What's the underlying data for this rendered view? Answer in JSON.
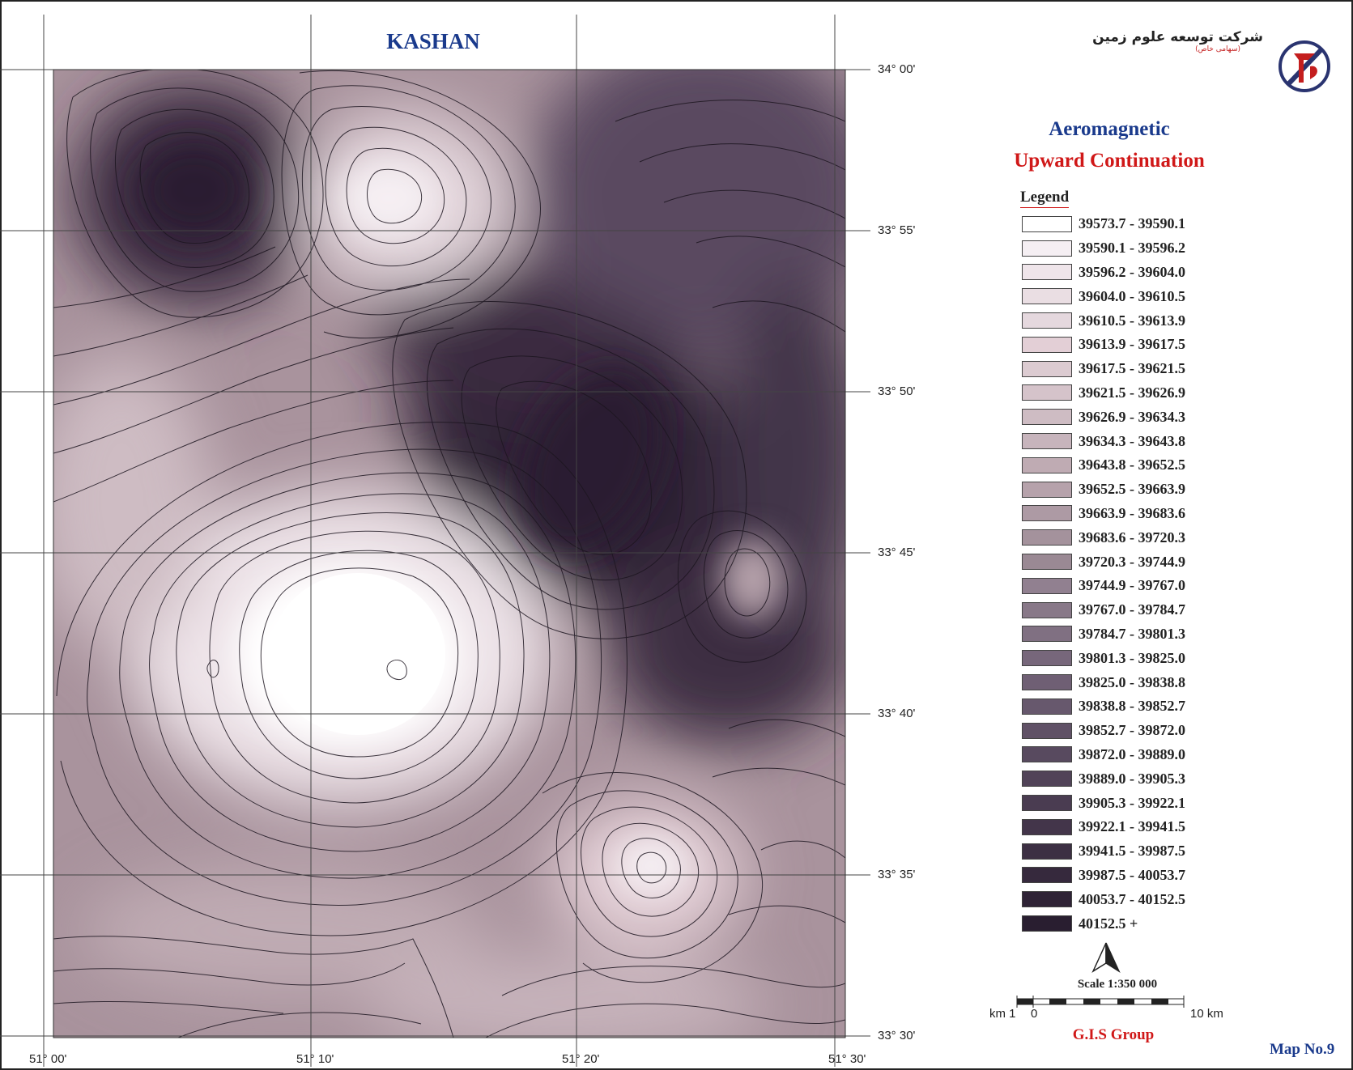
{
  "map": {
    "title": "KASHAN",
    "lat_labels": [
      "34° 00'",
      "33° 55'",
      "33° 50'",
      "33° 45'",
      "33° 40'",
      "33° 35'",
      "33° 30'"
    ],
    "lon_labels": [
      "51° 00'",
      "51° 10'",
      "51° 20'",
      "51° 30'"
    ]
  },
  "header": {
    "company_name": "شرکت توسعه علوم زمین",
    "company_sub": "(سهامی خاص)",
    "heading1": "Aeromagnetic",
    "heading2": "Upward Continuation"
  },
  "legend": {
    "title": "Legend",
    "items": [
      {
        "label": "39573.7 - 39590.1",
        "color": "#ffffff"
      },
      {
        "label": "39590.1 - 39596.2",
        "color": "#f5eff3"
      },
      {
        "label": "39596.2 - 39604.0",
        "color": "#efe5ea"
      },
      {
        "label": "39604.0 - 39610.5",
        "color": "#eadee3"
      },
      {
        "label": "39610.5 - 39613.9",
        "color": "#e5d8de"
      },
      {
        "label": "39613.9 - 39617.5",
        "color": "#e3cfd6"
      },
      {
        "label": "39617.5 - 39621.5",
        "color": "#dccbd1"
      },
      {
        "label": "39621.5 - 39626.9",
        "color": "#d5c3ca"
      },
      {
        "label": "39626.9 - 39634.3",
        "color": "#cebcc3"
      },
      {
        "label": "39634.3 - 39643.8",
        "color": "#c7b4bc"
      },
      {
        "label": "39643.8 - 39652.5",
        "color": "#bfabb3"
      },
      {
        "label": "39652.5 - 39663.9",
        "color": "#b6a2ab"
      },
      {
        "label": "39663.9 - 39683.6",
        "color": "#ad9aa4"
      },
      {
        "label": "39683.6 - 39720.3",
        "color": "#a4929c"
      },
      {
        "label": "39720.3 - 39744.9",
        "color": "#9a8994"
      },
      {
        "label": "39744.9 - 39767.0",
        "color": "#918090"
      },
      {
        "label": "39767.0 - 39784.7",
        "color": "#887888"
      },
      {
        "label": "39784.7 - 39801.3",
        "color": "#807082"
      },
      {
        "label": "39801.3 - 39825.0",
        "color": "#77677b"
      },
      {
        "label": "39825.0 - 39838.8",
        "color": "#6f5f74"
      },
      {
        "label": "39838.8 - 39852.7",
        "color": "#67586d"
      },
      {
        "label": "39852.7 - 39872.0",
        "color": "#605166"
      },
      {
        "label": "39872.0 - 39889.0",
        "color": "#584a5f"
      },
      {
        "label": "39889.0 - 39905.3",
        "color": "#514358"
      },
      {
        "label": "39905.3 - 39922.1",
        "color": "#4a3c51"
      },
      {
        "label": "39922.1 - 39941.5",
        "color": "#43354a"
      },
      {
        "label": "39941.5 - 39987.5",
        "color": "#3c2f43"
      },
      {
        "label": "39987.5 - 40053.7",
        "color": "#36293d"
      },
      {
        "label": "40053.7 - 40152.5",
        "color": "#2f2336"
      },
      {
        "label": "40152.5 +",
        "color": "#291e30"
      }
    ]
  },
  "scale": {
    "title": "Scale 1:350 000",
    "left_unit": "km 1",
    "zero": "0",
    "right": "10 km"
  },
  "footer": {
    "group": "G.I.S Group",
    "map_no": "Map No.9"
  },
  "colors": {
    "title_blue": "#1a3a8c",
    "accent_red": "#d01818"
  }
}
